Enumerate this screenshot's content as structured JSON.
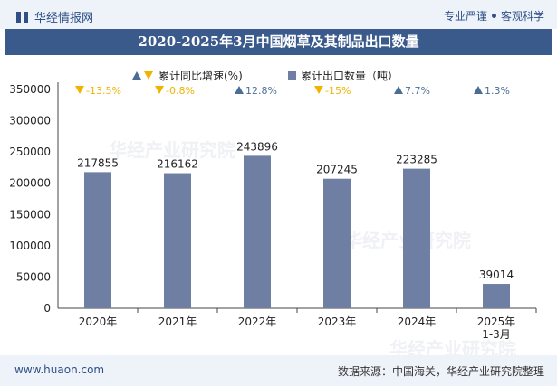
{
  "header": {
    "site_name": "华经情报网",
    "slogan_left": "专业严谨",
    "slogan_right": "客观科学"
  },
  "footer": {
    "url": "www.huaon.com",
    "source": "数据来源：中国海关，华经产业研究院整理"
  },
  "watermark": "华经产业研究院",
  "colors": {
    "bar": "#6e7fa3",
    "title_bg": "#3a5a8c",
    "bar_header": "#eef3fa",
    "up": "#4a6d95",
    "down": "#f0b400",
    "text": "#222222"
  },
  "chart_data": {
    "type": "bar",
    "title": "2020-2025年3月中国烟草及其制品出口数量",
    "categories": [
      "2020年",
      "2021年",
      "2022年",
      "2023年",
      "2024年",
      "2025年 1-3月"
    ],
    "series": [
      {
        "name": "累计出口数量（吨）",
        "values": [
          217855,
          216162,
          243896,
          207245,
          223285,
          39014
        ]
      }
    ],
    "growth": {
      "name": "累计同比增速(%)",
      "labels": [
        "-13.5%",
        "-0.8%",
        "12.8%",
        "-15%",
        "7.7%",
        "1.3%"
      ],
      "direction": [
        "down",
        "down",
        "up",
        "down",
        "up",
        "up"
      ]
    },
    "ylim": [
      0,
      350000
    ],
    "yticks": [
      0,
      50000,
      100000,
      150000,
      200000,
      250000,
      300000,
      350000
    ],
    "legend_position": "top",
    "grid": false
  }
}
